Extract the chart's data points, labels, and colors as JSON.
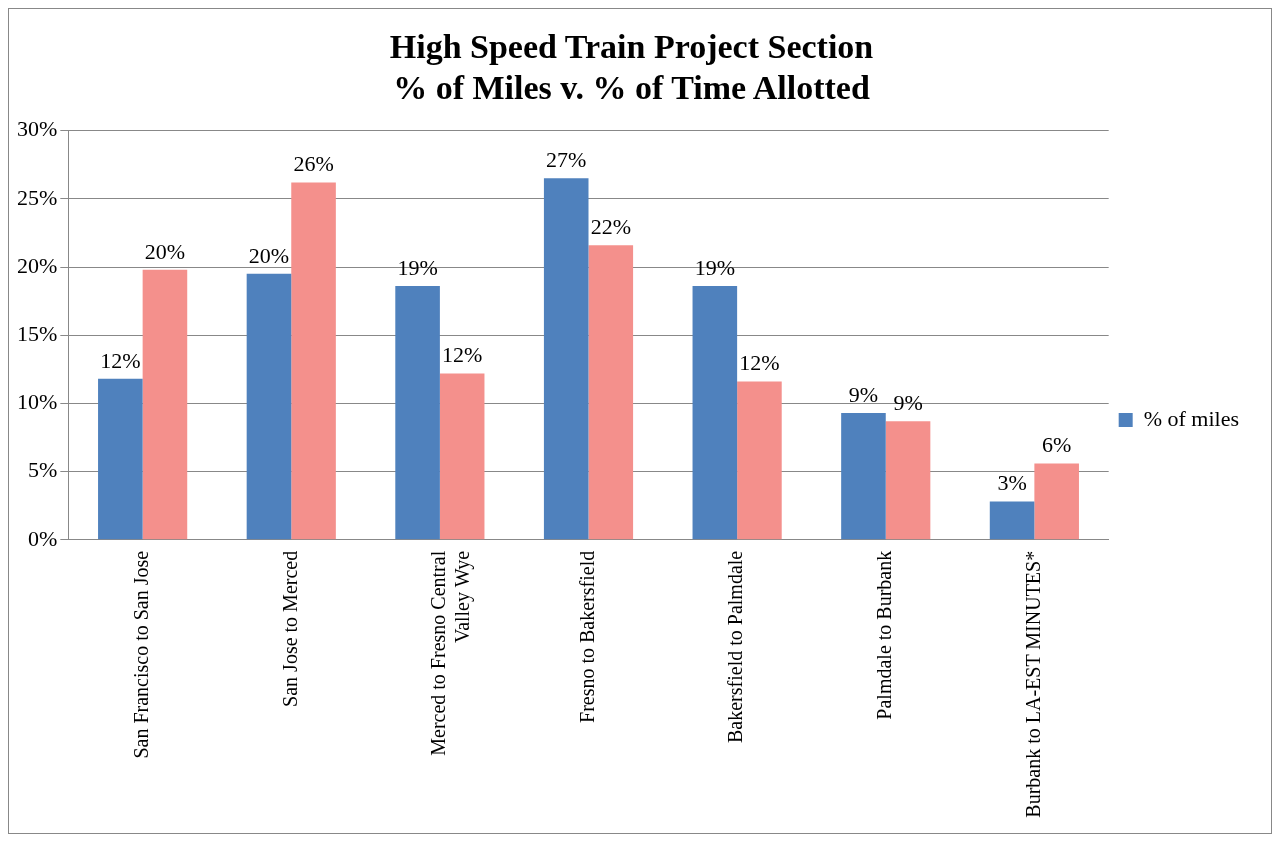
{
  "chart_data": {
    "type": "bar",
    "title": "High Speed Train Project Section\n% of Miles v. % of Time Allotted",
    "categories": [
      "San Francisco to San Jose",
      "San Jose to Merced",
      "Merced to Fresno Central Valley Wye",
      "Fresno to Bakersfield",
      "Bakersfield to Palmdale",
      "Palmdale to Burbank",
      "Burbank to LA-EST MINUTES*"
    ],
    "series": [
      {
        "name": "% of miles",
        "color": "#4f81bd",
        "values": [
          11.8,
          19.5,
          18.6,
          26.5,
          18.6,
          9.3,
          2.8
        ],
        "value_labels": [
          "12%",
          "20%",
          "19%",
          "27%",
          "19%",
          "9%",
          "3%"
        ]
      },
      {
        "color": "#f4908c",
        "values": [
          19.8,
          26.2,
          12.2,
          21.6,
          11.6,
          8.7,
          5.6
        ],
        "value_labels": [
          "20%",
          "26%",
          "12%",
          "22%",
          "12%",
          "9%",
          "6%"
        ]
      }
    ],
    "ylim": [
      0,
      30
    ],
    "yticks": [
      {
        "value": 0,
        "label": "0%"
      },
      {
        "value": 5,
        "label": "5%"
      },
      {
        "value": 10,
        "label": "10%"
      },
      {
        "value": 15,
        "label": "15%"
      },
      {
        "value": 20,
        "label": "20%"
      },
      {
        "value": 25,
        "label": "25%"
      },
      {
        "value": 30,
        "label": "30%"
      }
    ],
    "grid": "y",
    "legend": "right"
  }
}
